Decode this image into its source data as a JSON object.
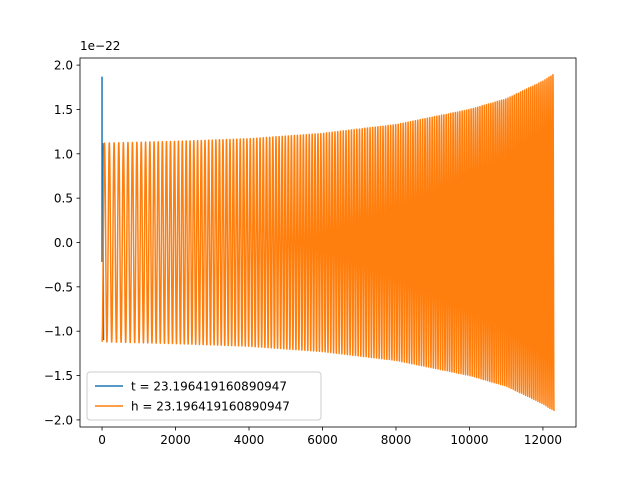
{
  "chart_data": {
    "type": "line",
    "title": "",
    "xlabel": "",
    "ylabel": "",
    "xlim": [
      -600,
      12900
    ],
    "ylim": [
      -2.08,
      2.08
    ],
    "y_offset_label": "1e−22",
    "x_ticks": [
      0,
      2000,
      4000,
      6000,
      8000,
      10000,
      12000
    ],
    "x_tick_labels": [
      "0",
      "2000",
      "4000",
      "6000",
      "8000",
      "10000",
      "12000"
    ],
    "y_ticks": [
      -2.0,
      -1.5,
      -1.0,
      -0.5,
      0.0,
      0.5,
      1.0,
      1.5,
      2.0
    ],
    "y_tick_labels": [
      "−2.0",
      "−1.5",
      "−1.0",
      "−0.5",
      "0.0",
      "0.5",
      "1.0",
      "1.5",
      "2.0"
    ],
    "grid": false,
    "legend_position": "lower-left",
    "series": [
      {
        "name": "t = 23.196419160890947",
        "color": "#1f77b4",
        "description_points": {
          "x": [
            0,
            0,
            0,
            20,
            40
          ],
          "y": [
            -0.22,
            1.87,
            -0.22,
            1.12,
            -1.1
          ]
        }
      },
      {
        "name": "h = 23.196419160890947",
        "color": "#ff7f0e",
        "envelope": {
          "x": [
            0,
            2000,
            4000,
            6000,
            8000,
            10000,
            11000,
            12000,
            12300
          ],
          "amplitude": [
            1.12,
            1.14,
            1.17,
            1.23,
            1.33,
            1.5,
            1.62,
            1.82,
            1.9
          ]
        },
        "end_x": 12300,
        "cycles": 160
      }
    ]
  }
}
